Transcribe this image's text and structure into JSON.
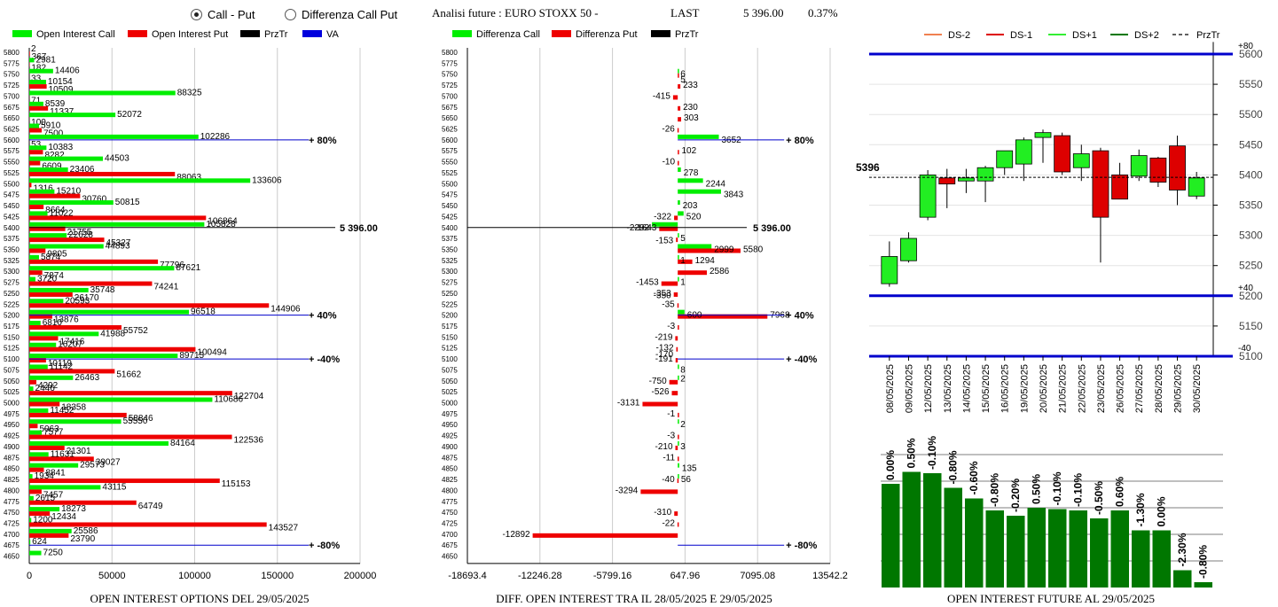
{
  "controls": {
    "option_call_put": "Call - Put",
    "option_diff": "Differenza Call Put"
  },
  "header": {
    "title": "Analisi future : EURO STOXX 50 -",
    "last_label": "LAST",
    "last_value": "5 396.00",
    "change": "0.37%"
  },
  "colors": {
    "call": "#00ee00",
    "put": "#ee0000",
    "prztr": "#000000",
    "va": "#0000dd",
    "dark_green": "#007700",
    "level_line": "#0000cc"
  },
  "chart_data": [
    {
      "type": "bar",
      "orientation": "horizontal",
      "title": "OPEN INTEREST OPTIONS DEL 29/05/2025",
      "legend": [
        "Open Interest Call",
        "Open Interest Put",
        "PrzTr",
        "VA"
      ],
      "categories": [
        5800,
        5775,
        5750,
        5725,
        5700,
        5675,
        5650,
        5625,
        5600,
        5575,
        5550,
        5525,
        5500,
        5475,
        5450,
        5425,
        5400,
        5375,
        5350,
        5325,
        5300,
        5275,
        5250,
        5225,
        5200,
        5175,
        5150,
        5125,
        5100,
        5075,
        5050,
        5025,
        5000,
        4975,
        4950,
        4925,
        4900,
        4875,
        4850,
        4825,
        4800,
        4775,
        4750,
        4725,
        4700,
        4675,
        4650
      ],
      "series": [
        {
          "name": "Open Interest Call",
          "values": [
            2,
            2981,
            14406,
            10154,
            88325,
            8539,
            52072,
            5910,
            102286,
            10383,
            44503,
            23406,
            133606,
            15210,
            50815,
            11022,
            105828,
            22628,
            44893,
            5874,
            87621,
            3720,
            35748,
            20593,
            96518,
            6810,
            41988,
            16207,
            89715,
            11142,
            26463,
            2446,
            110686,
            11452,
            55550,
            7577,
            84164,
            11631,
            29573,
            1934,
            43115,
            2615,
            18273,
            1200,
            25586,
            624,
            7250
          ]
        },
        {
          "name": "Open Interest Put",
          "values": [
            367,
            182,
            33,
            10509,
            71,
            11337,
            100,
            7500,
            53,
            8282,
            6609,
            88063,
            1316,
            30760,
            8664,
            106864,
            21755,
            45327,
            9805,
            77796,
            7874,
            74241,
            26170,
            144906,
            13876,
            55752,
            17416,
            100494,
            10119,
            51662,
            4292,
            122704,
            18358,
            58846,
            5063,
            122536,
            21301,
            39027,
            8841,
            115153,
            7457,
            64749,
            12434,
            143527,
            23790,
            0,
            0
          ]
        }
      ],
      "xlim": [
        0,
        200000
      ],
      "xticks": [
        "0",
        "50000",
        "100000",
        "150000",
        "200000"
      ],
      "markers": [
        {
          "strike": 5600,
          "label": "+80%"
        },
        {
          "strike": 5200,
          "label": "+40%"
        },
        {
          "strike": 5100,
          "label": "-40%"
        },
        {
          "strike": 4675,
          "label": "-80%"
        }
      ],
      "prztr": {
        "strike": 5400,
        "label": "5 396.00"
      }
    },
    {
      "type": "bar",
      "orientation": "horizontal",
      "title": "DIFF. OPEN INTEREST TRA IL 28/05/2025 E 29/05/2025",
      "legend": [
        "Differenza Call",
        "Differenza Put",
        "PrzTr"
      ],
      "categories": [
        5800,
        5775,
        5750,
        5725,
        5700,
        5675,
        5650,
        5625,
        5600,
        5575,
        5550,
        5525,
        5500,
        5475,
        5450,
        5425,
        5400,
        5375,
        5350,
        5325,
        5300,
        5275,
        5250,
        5225,
        5200,
        5175,
        5150,
        5125,
        5100,
        5075,
        5050,
        5025,
        5000,
        4975,
        4950,
        4925,
        4900,
        4875,
        4850,
        4825,
        4800,
        4775,
        4750,
        4725,
        4700,
        4675,
        4650
      ],
      "labels": [
        {
          "strike": 5750,
          "text": "6"
        },
        {
          "strike": 5737.5,
          "text": "5"
        },
        {
          "strike": 5725,
          "text": "233"
        },
        {
          "strike": 5700,
          "text": "-415"
        },
        {
          "strike": 5675,
          "text": "230"
        },
        {
          "strike": 5650,
          "text": "303"
        },
        {
          "strike": 5625,
          "text": "-26"
        },
        {
          "strike": 5600,
          "text": "3652"
        },
        {
          "strike": 5575,
          "text": "102"
        },
        {
          "strike": 5550,
          "text": "-10"
        },
        {
          "strike": 5525,
          "text": "278"
        },
        {
          "strike": 5500,
          "text": "2244"
        },
        {
          "strike": 5475,
          "text": "3843"
        },
        {
          "strike": 5450,
          "text": "203"
        },
        {
          "strike": 5425,
          "text": "-322"
        },
        {
          "strike": 5425,
          "text": "520"
        },
        {
          "strike": 5400,
          "text": "-2292"
        },
        {
          "strike": 5400,
          "text": "-1643"
        },
        {
          "strike": 5375,
          "text": "5"
        },
        {
          "strike": 5370,
          "text": "-153"
        },
        {
          "strike": 5350,
          "text": "2999"
        },
        {
          "strike": 5350,
          "text": "5580"
        },
        {
          "strike": 5325,
          "text": "1"
        },
        {
          "strike": 5325,
          "text": "1294"
        },
        {
          "strike": 5300,
          "text": "2586"
        },
        {
          "strike": 5275,
          "text": "-1453"
        },
        {
          "strike": 5275,
          "text": "1"
        },
        {
          "strike": 5250,
          "text": "-353"
        },
        {
          "strike": 5245,
          "text": "-350"
        },
        {
          "strike": 5225,
          "text": "-35"
        },
        {
          "strike": 5200,
          "text": "600"
        },
        {
          "strike": 5200,
          "text": "7968"
        },
        {
          "strike": 5175,
          "text": "-3"
        },
        {
          "strike": 5150,
          "text": "-219"
        },
        {
          "strike": 5125,
          "text": "-132"
        },
        {
          "strike": 5110,
          "text": "-170"
        },
        {
          "strike": 5100,
          "text": "-191"
        },
        {
          "strike": 5075,
          "text": "8"
        },
        {
          "strike": 5055,
          "text": "2"
        },
        {
          "strike": 5050,
          "text": "-750"
        },
        {
          "strike": 5025,
          "text": "-526"
        },
        {
          "strike": 5000,
          "text": "-3131"
        },
        {
          "strike": 4975,
          "text": "-1"
        },
        {
          "strike": 4950,
          "text": "2"
        },
        {
          "strike": 4925,
          "text": "-3"
        },
        {
          "strike": 4900,
          "text": "-210"
        },
        {
          "strike": 4900,
          "text": "3"
        },
        {
          "strike": 4875,
          "text": "-11"
        },
        {
          "strike": 4850,
          "text": "135"
        },
        {
          "strike": 4825,
          "text": "-40"
        },
        {
          "strike": 4825,
          "text": "56"
        },
        {
          "strike": 4800,
          "text": "-3294"
        },
        {
          "strike": 4750,
          "text": "-310"
        },
        {
          "strike": 4725,
          "text": "-22"
        },
        {
          "strike": 4700,
          "text": "-12892"
        }
      ],
      "series": [
        {
          "name": "Differenza Call",
          "values": [
            0,
            0,
            6,
            0,
            0,
            0,
            0,
            0,
            3652,
            0,
            0,
            278,
            2244,
            3843,
            203,
            520,
            -2292,
            5,
            2999,
            1,
            0,
            1,
            0,
            0,
            600,
            0,
            0,
            0,
            0,
            8,
            2,
            0,
            0,
            0,
            2,
            0,
            3,
            0,
            135,
            56,
            0,
            0,
            0,
            0,
            0,
            0,
            0
          ]
        },
        {
          "name": "Differenza Put",
          "values": [
            0,
            0,
            5,
            233,
            -415,
            230,
            303,
            -26,
            0,
            102,
            -10,
            0,
            0,
            0,
            0,
            -322,
            -1643,
            -153,
            5580,
            1294,
            2586,
            -1453,
            -353,
            -35,
            7968,
            -3,
            -219,
            -132,
            -191,
            0,
            -750,
            -526,
            -3131,
            -1,
            0,
            -3,
            -210,
            -11,
            0,
            -40,
            -3294,
            0,
            -310,
            -22,
            -12892,
            0,
            0
          ]
        }
      ],
      "xlim": [
        -18693.4,
        13542.2
      ],
      "xticks": [
        "-18693.4",
        "-12246.28",
        "-5799.16",
        "647.96",
        "7095.08",
        "13542.2"
      ],
      "markers": [
        {
          "strike": 5600,
          "label": "+80%"
        },
        {
          "strike": 5200,
          "label": "+40%"
        },
        {
          "strike": 5100,
          "label": "-40%"
        },
        {
          "strike": 4675,
          "label": "-80%"
        }
      ],
      "prztr": {
        "strike": 5400,
        "label": "5 396.00"
      }
    },
    {
      "type": "candlestick",
      "legend": [
        "DS-2",
        "DS-1",
        "DS+1",
        "DS+2",
        "PrzTr"
      ],
      "categories": [
        "08/05/2025",
        "09/05/2025",
        "12/05/2025",
        "13/05/2025",
        "14/05/2025",
        "15/05/2025",
        "16/05/2025",
        "19/05/2025",
        "20/05/2025",
        "21/05/2025",
        "22/05/2025",
        "23/05/2025",
        "26/05/2025",
        "27/05/2025",
        "28/05/2025",
        "29/05/2025",
        "30/05/2025"
      ],
      "ohlc": [
        [
          5220,
          5290,
          5215,
          5265
        ],
        [
          5258,
          5305,
          5255,
          5295
        ],
        [
          5330,
          5408,
          5325,
          5400
        ],
        [
          5395,
          5410,
          5345,
          5385
        ],
        [
          5390,
          5410,
          5370,
          5395
        ],
        [
          5390,
          5415,
          5355,
          5412
        ],
        [
          5412,
          5440,
          5400,
          5440
        ],
        [
          5418,
          5462,
          5390,
          5458
        ],
        [
          5462,
          5475,
          5420,
          5470
        ],
        [
          5465,
          5470,
          5400,
          5405
        ],
        [
          5412,
          5450,
          5390,
          5435
        ],
        [
          5440,
          5445,
          5255,
          5330
        ],
        [
          5400,
          5420,
          5360,
          5360
        ],
        [
          5398,
          5442,
          5390,
          5432
        ],
        [
          5428,
          5430,
          5380,
          5388
        ],
        [
          5448,
          5465,
          5350,
          5375
        ],
        [
          5365,
          5405,
          5360,
          5395
        ]
      ],
      "ylim": [
        5100,
        5600
      ],
      "yticks": [
        5100,
        5150,
        5200,
        5250,
        5300,
        5350,
        5400,
        5450,
        5500,
        5550,
        5600
      ],
      "levels": [
        {
          "value": 5600,
          "label": "+80"
        },
        {
          "value": 5200,
          "label": "+40"
        },
        {
          "value": 5100,
          "label": "-40"
        }
      ],
      "prztr": {
        "value": 5396,
        "label": "5396"
      }
    },
    {
      "type": "bar",
      "title": "OPEN INTEREST FUTURE AL 29/05/2025",
      "values_pct": [
        "0.00%",
        "0.50%",
        "-0.10%",
        "-0.80%",
        "-0.60%",
        "-0.80%",
        "-0.20%",
        "0.50%",
        "-0.10%",
        "-0.10%",
        "-0.50%",
        "0.60%",
        "-1.30%",
        "0.00%",
        "-2.30%",
        "-0.80%"
      ],
      "relative_heights": [
        0.78,
        0.87,
        0.86,
        0.75,
        0.67,
        0.58,
        0.54,
        0.6,
        0.59,
        0.58,
        0.52,
        0.58,
        0.43,
        0.43,
        0.13,
        0.04
      ]
    }
  ],
  "footer": {
    "left_title": "OPEN INTEREST OPTIONS DEL 29/05/2025",
    "mid_title": "DIFF. OPEN INTEREST TRA IL 28/05/2025 E 29/05/2025",
    "right_title": "OPEN INTEREST FUTURE AL 29/05/2025"
  }
}
